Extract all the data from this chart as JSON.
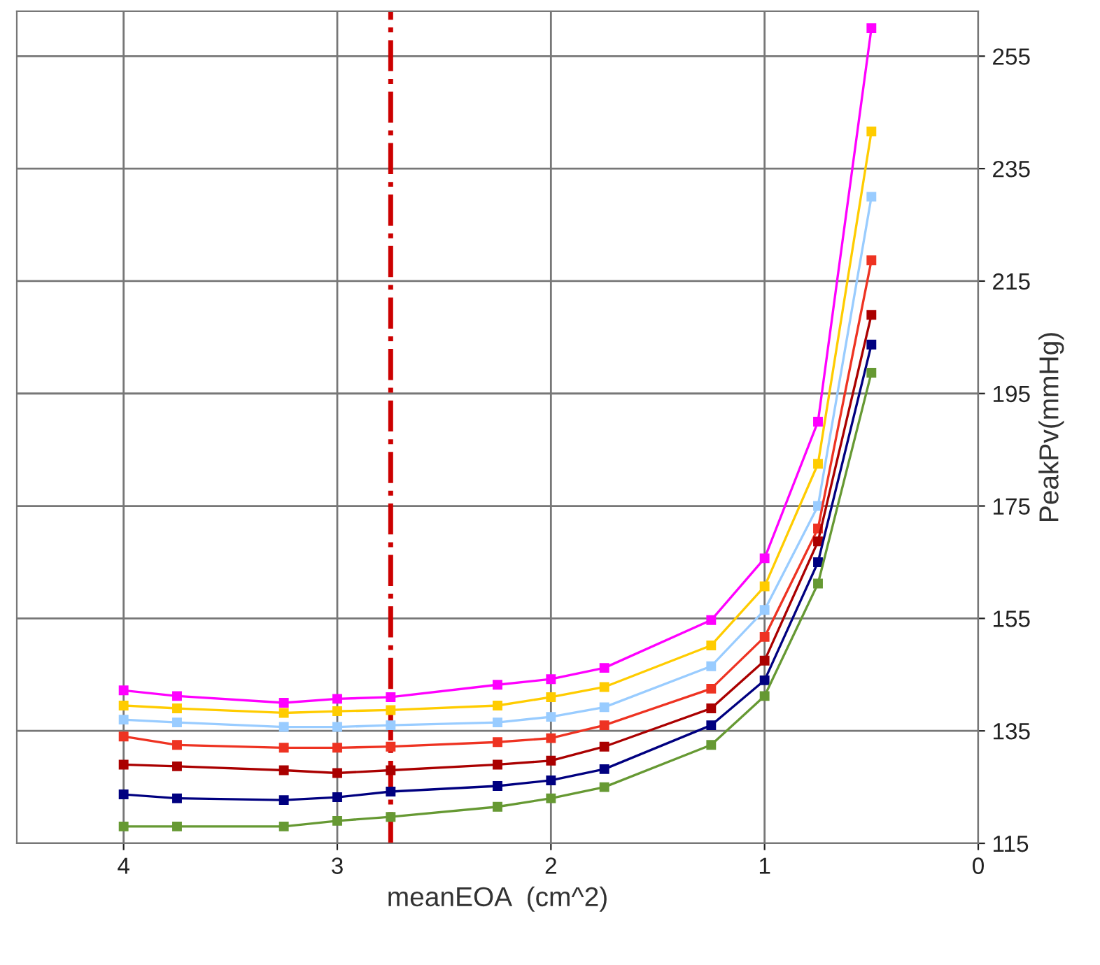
{
  "chart_data": {
    "type": "line",
    "xlabel": "meanEOA  (cm^2)",
    "ylabel": "PeakPv(mmHg)",
    "x": [
      4,
      3.75,
      3.25,
      3,
      2.75,
      2.25,
      2,
      1.75,
      1.25,
      1,
      0.75,
      0.5
    ],
    "xlim": [
      4.5,
      0
    ],
    "xticks": [
      4,
      3,
      2,
      1,
      0
    ],
    "ylim": [
      115,
      263
    ],
    "yticks": [
      115,
      135,
      155,
      175,
      195,
      215,
      235,
      255
    ],
    "grid": true,
    "marker": "square",
    "line_style": "solid",
    "ref_lines": [
      {
        "axis": "x",
        "value": 2.75,
        "color": "#cc0000",
        "line_style": "dashdot"
      }
    ],
    "series": [
      {
        "color": "#ff00ff",
        "values": [
          142.2,
          141.2,
          140,
          140.7,
          141,
          143.2,
          144.2,
          146.2,
          154.7,
          165.7,
          190,
          260
        ]
      },
      {
        "color": "#ffcc00",
        "values": [
          139.5,
          139,
          138.2,
          138.5,
          138.7,
          139.5,
          141,
          142.8,
          150.2,
          160.7,
          182.5,
          241.6
        ]
      },
      {
        "color": "#99ccff",
        "values": [
          137,
          136.5,
          135.7,
          135.7,
          136,
          136.5,
          137.5,
          139.2,
          146.5,
          156.5,
          175,
          230
        ]
      },
      {
        "color": "#ee3322",
        "values": [
          134,
          132.5,
          132,
          132,
          132.2,
          133,
          133.7,
          136,
          142.5,
          151.7,
          171,
          218.7
        ]
      },
      {
        "color": "#aa0000",
        "values": [
          129,
          128.7,
          128,
          127.5,
          128,
          129,
          129.7,
          132.2,
          139,
          147.5,
          168.7,
          209
        ]
      },
      {
        "color": "#000080",
        "values": [
          123.7,
          123,
          122.7,
          123.2,
          124.2,
          125.2,
          126.2,
          128.2,
          136,
          144,
          165,
          203.7
        ]
      },
      {
        "color": "#669933",
        "values": [
          118,
          118,
          118,
          119,
          119.7,
          121.5,
          123,
          125,
          132.5,
          141.2,
          161.2,
          198.7
        ]
      }
    ]
  }
}
